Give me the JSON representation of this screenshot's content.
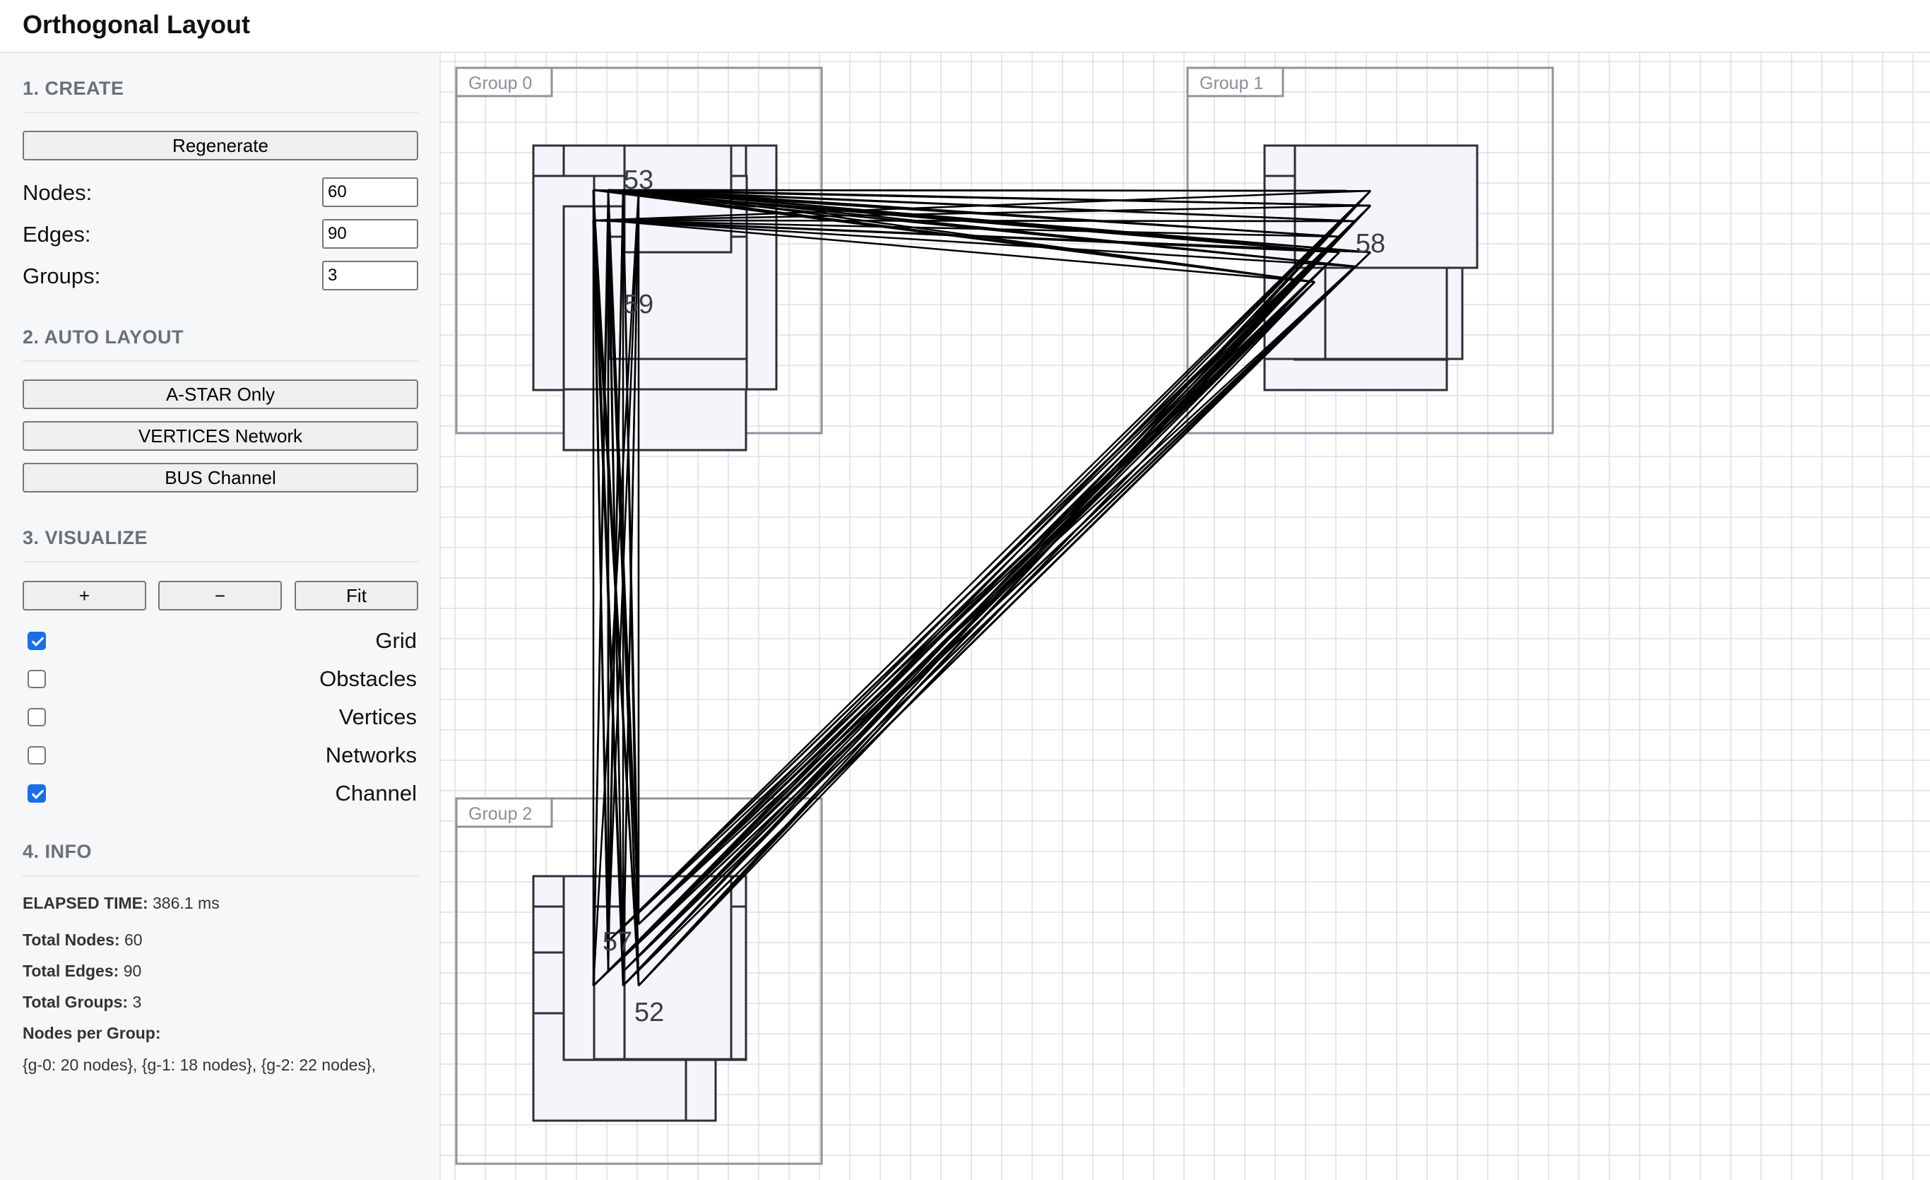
{
  "header": {
    "title": "Orthogonal Layout"
  },
  "sidebar": {
    "create": {
      "title": "1. CREATE",
      "regenerate_label": "Regenerate",
      "nodes_label": "Nodes:",
      "nodes_value": "60",
      "edges_label": "Edges:",
      "edges_value": "90",
      "groups_label": "Groups:",
      "groups_value": "3"
    },
    "auto_layout": {
      "title": "2. AUTO LAYOUT",
      "astar_label": "A-STAR Only",
      "vertices_label": "VERTICES Network",
      "bus_label": "BUS Channel"
    },
    "visualize": {
      "title": "3. VISUALIZE",
      "zoom_in_label": "+",
      "zoom_out_label": "−",
      "fit_label": "Fit",
      "toggles": [
        {
          "label": "Grid",
          "checked": true
        },
        {
          "label": "Obstacles",
          "checked": false
        },
        {
          "label": "Vertices",
          "checked": false
        },
        {
          "label": "Networks",
          "checked": false
        },
        {
          "label": "Channel",
          "checked": true
        }
      ]
    },
    "info": {
      "title": "4. INFO",
      "elapsed_key": "ELAPSED TIME:",
      "elapsed_value": "386.1 ms",
      "nodes_key": "Total Nodes:",
      "nodes_value": "60",
      "edges_key": "Total Edges:",
      "edges_value": "90",
      "groups_key": "Total Groups:",
      "groups_value": "3",
      "per_group_key": "Nodes per Group:",
      "per_group_value": "{g-0: 20 nodes}, {g-1: 18 nodes}, {g-2: 22 nodes},"
    }
  },
  "diagram": {
    "groups": [
      {
        "label": "Group 0"
      },
      {
        "label": "Group 1"
      },
      {
        "label": "Group 2"
      }
    ],
    "node_labels": [
      "53",
      "59",
      "58",
      "57",
      "52"
    ],
    "colors": {
      "grid": "#dcdfe3",
      "group_border": "#8e939b",
      "node_fill": "#f4f4fa",
      "node_border": "#2b3038",
      "edge": "#000000"
    }
  }
}
